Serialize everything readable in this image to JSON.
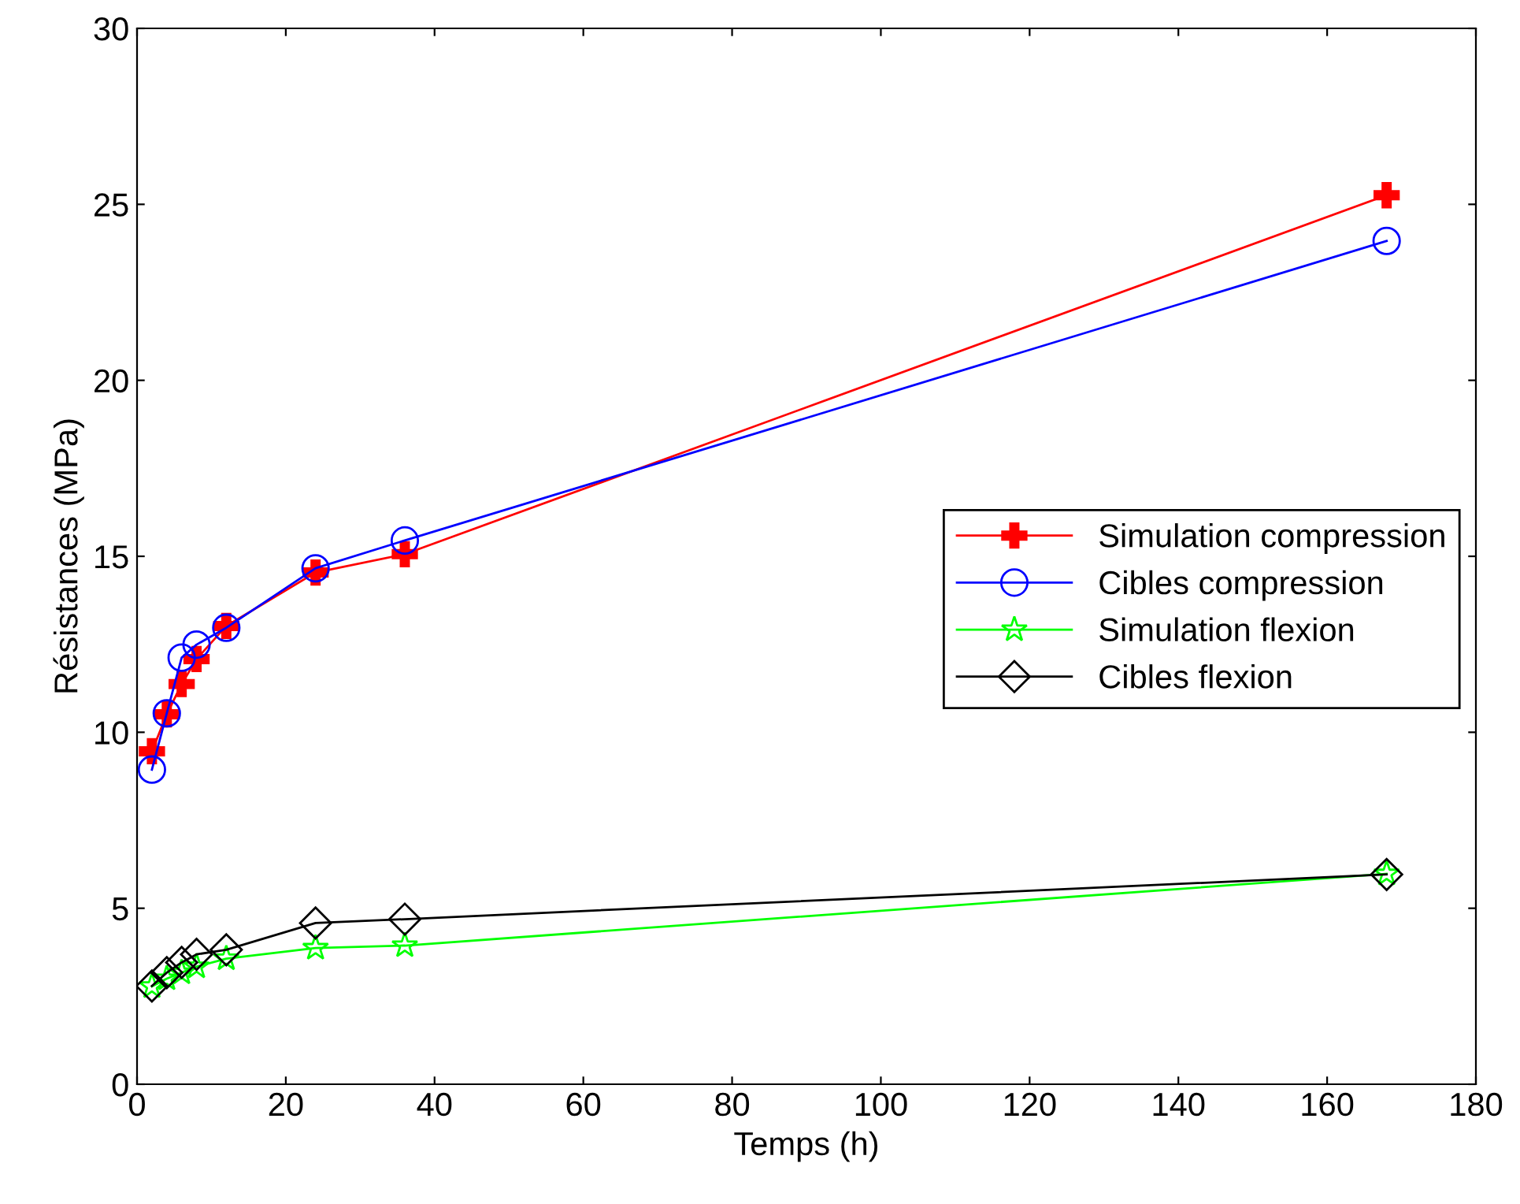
{
  "chart_data": {
    "type": "line",
    "xlabel": "Temps (h)",
    "ylabel": "Résistances (MPa)",
    "x": [
      2,
      4,
      6,
      8,
      12,
      24,
      36,
      168
    ],
    "series": [
      {
        "name": "Simulation compression",
        "color": "#ff0000",
        "marker": "cross",
        "values": [
          9.46,
          10.51,
          11.37,
          12.08,
          13.02,
          14.54,
          15.06,
          25.26
        ]
      },
      {
        "name": "Cibles compression",
        "color": "#0000ff",
        "marker": "circle",
        "values": [
          8.94,
          10.54,
          12.12,
          12.49,
          12.97,
          14.66,
          15.45,
          23.96
        ]
      },
      {
        "name": "Simulation flexion",
        "color": "#00ff00",
        "marker": "star",
        "values": [
          2.78,
          3.0,
          3.17,
          3.34,
          3.57,
          3.87,
          3.94,
          5.98
        ]
      },
      {
        "name": "Cibles flexion",
        "color": "#000000",
        "marker": "diamond",
        "values": [
          2.79,
          3.17,
          3.46,
          3.69,
          3.82,
          4.58,
          4.69,
          5.96
        ]
      }
    ],
    "xlim": [
      0,
      180
    ],
    "xticks": [
      0,
      20,
      40,
      60,
      80,
      100,
      120,
      140,
      160,
      180
    ],
    "ylim": [
      0,
      30
    ],
    "yticks": [
      0,
      5,
      10,
      15,
      20,
      25,
      30
    ],
    "grid": false,
    "legend": "right"
  }
}
